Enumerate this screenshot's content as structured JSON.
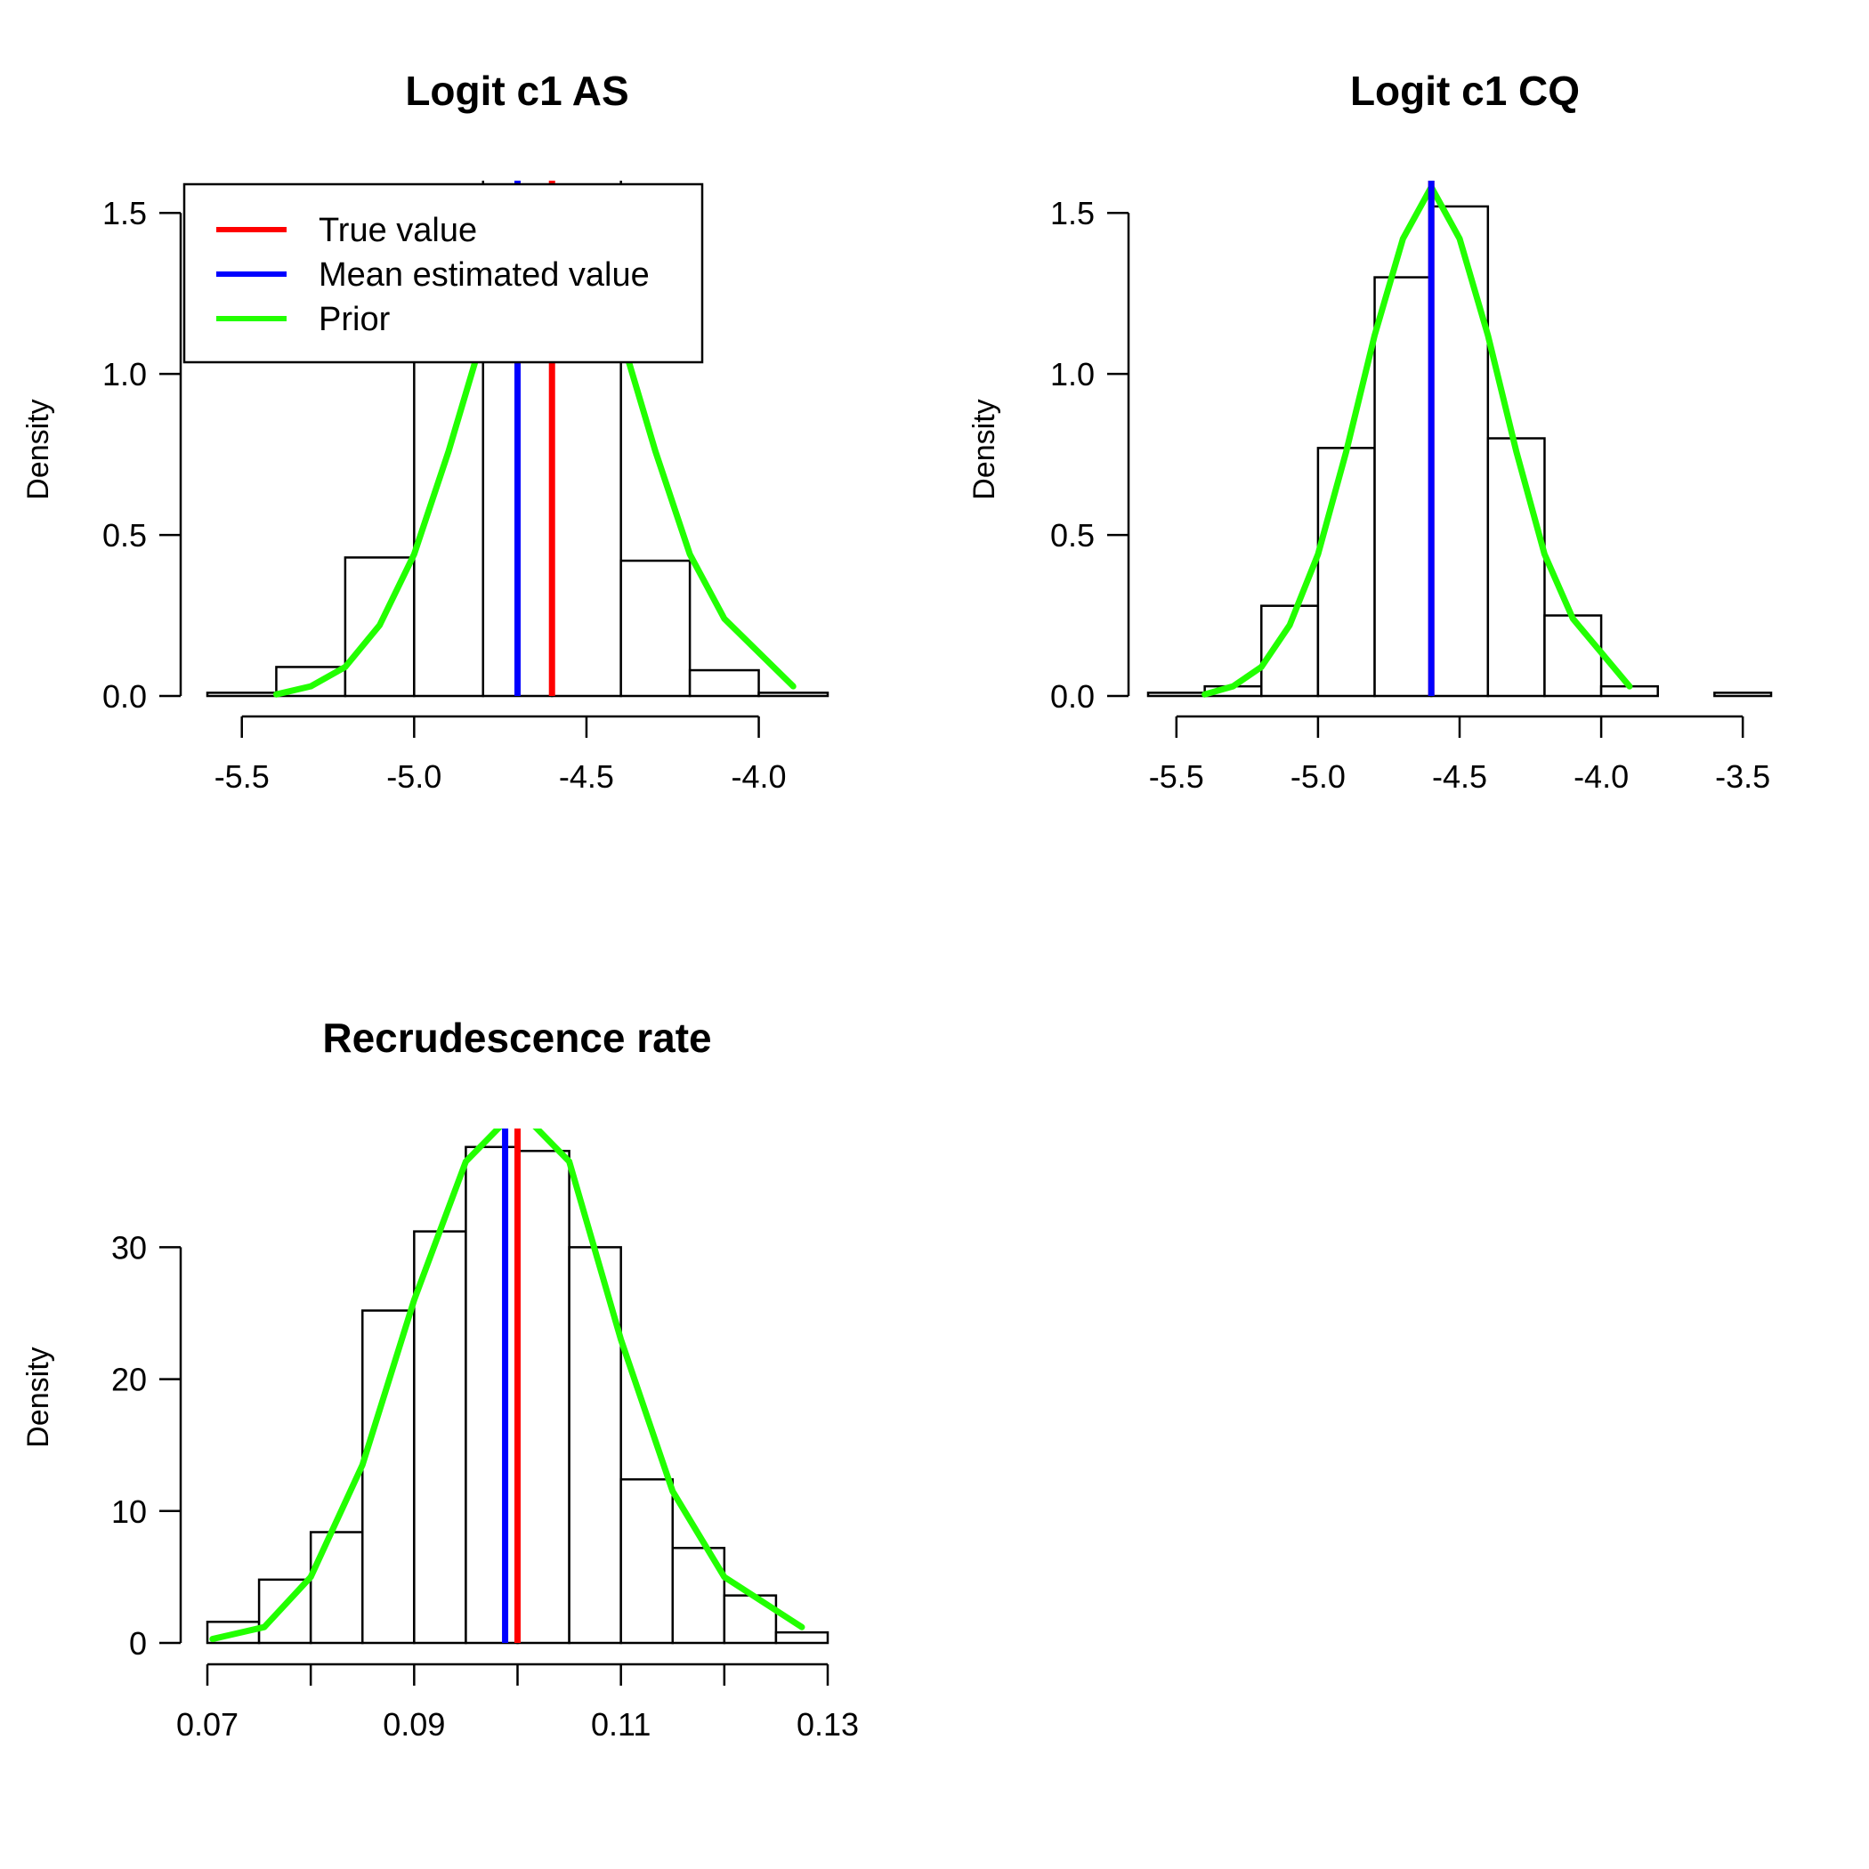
{
  "chart_data": [
    {
      "type": "histogram",
      "title": "Logit c1 AS",
      "xlabel": "",
      "ylabel": "Density",
      "xlim": [
        -5.6,
        -3.8
      ],
      "ylim": [
        0,
        1.6
      ],
      "x_ticks": [
        -5.5,
        -5.0,
        -4.5,
        -4.0
      ],
      "x_tick_labels": [
        "-5.5",
        "-5.0",
        "-4.5",
        "-4.0"
      ],
      "y_ticks": [
        0,
        0.5,
        1.0,
        1.5
      ],
      "y_tick_labels": [
        "0.0",
        "0.5",
        "1.0",
        "1.5"
      ],
      "bins": [
        {
          "x0": -5.6,
          "x1": -5.4,
          "density": 0.01
        },
        {
          "x0": -5.4,
          "x1": -5.2,
          "density": 0.09
        },
        {
          "x0": -5.2,
          "x1": -5.0,
          "density": 0.43
        },
        {
          "x0": -5.0,
          "x1": -4.8,
          "density": 1.05
        },
        {
          "x0": -4.8,
          "x1": -4.6,
          "density": 1.9
        },
        {
          "x0": -4.6,
          "x1": -4.4,
          "density": 1.7
        },
        {
          "x0": -4.4,
          "x1": -4.2,
          "density": 0.42
        },
        {
          "x0": -4.2,
          "x1": -4.0,
          "density": 0.08
        },
        {
          "x0": -4.0,
          "x1": -3.8,
          "density": 0.01
        }
      ],
      "true_value": -4.6,
      "mean_estimate": -4.7,
      "prior": {
        "x": [
          -5.4,
          -5.3,
          -5.2,
          -5.1,
          -5.0,
          -4.9,
          -4.8,
          -4.7,
          -4.6,
          -4.5,
          -4.4,
          -4.3,
          -4.2,
          -4.1,
          -3.9
        ],
        "y": [
          0.005,
          0.03,
          0.09,
          0.22,
          0.44,
          0.76,
          1.12,
          1.42,
          1.58,
          1.42,
          1.12,
          0.76,
          0.44,
          0.24,
          0.03
        ]
      },
      "legend": {
        "placement": "top-left",
        "entries": [
          {
            "label": "True value",
            "color": "#ff0000"
          },
          {
            "label": "Mean estimated value",
            "color": "#0000ff"
          },
          {
            "label": "Prior",
            "color": "#22ff00"
          }
        ]
      }
    },
    {
      "type": "histogram",
      "title": "Logit c1 CQ",
      "xlabel": "",
      "ylabel": "Density",
      "xlim": [
        -5.6,
        -3.4
      ],
      "ylim": [
        0,
        1.6
      ],
      "x_ticks": [
        -5.5,
        -5.0,
        -4.5,
        -4.0,
        -3.5
      ],
      "x_tick_labels": [
        "-5.5",
        "-5.0",
        "-4.5",
        "-4.0",
        "-3.5"
      ],
      "y_ticks": [
        0,
        0.5,
        1.0,
        1.5
      ],
      "y_tick_labels": [
        "0.0",
        "0.5",
        "1.0",
        "1.5"
      ],
      "bins": [
        {
          "x0": -5.6,
          "x1": -5.4,
          "density": 0.01
        },
        {
          "x0": -5.4,
          "x1": -5.2,
          "density": 0.03
        },
        {
          "x0": -5.2,
          "x1": -5.0,
          "density": 0.28
        },
        {
          "x0": -5.0,
          "x1": -4.8,
          "density": 0.77
        },
        {
          "x0": -4.8,
          "x1": -4.6,
          "density": 1.3
        },
        {
          "x0": -4.6,
          "x1": -4.4,
          "density": 1.52
        },
        {
          "x0": -4.4,
          "x1": -4.2,
          "density": 0.8
        },
        {
          "x0": -4.2,
          "x1": -4.0,
          "density": 0.25
        },
        {
          "x0": -4.0,
          "x1": -3.8,
          "density": 0.03
        },
        {
          "x0": -3.8,
          "x1": -3.6,
          "density": 0.0
        },
        {
          "x0": -3.6,
          "x1": -3.4,
          "density": 0.01
        }
      ],
      "true_value": -4.6,
      "mean_estimate": -4.6,
      "prior": {
        "x": [
          -5.4,
          -5.3,
          -5.2,
          -5.1,
          -5.0,
          -4.9,
          -4.8,
          -4.7,
          -4.6,
          -4.5,
          -4.4,
          -4.3,
          -4.2,
          -4.1,
          -3.9
        ],
        "y": [
          0.005,
          0.03,
          0.09,
          0.22,
          0.44,
          0.76,
          1.12,
          1.42,
          1.58,
          1.42,
          1.12,
          0.76,
          0.44,
          0.24,
          0.03
        ]
      }
    },
    {
      "type": "histogram",
      "title": "Recrudescence rate",
      "xlabel": "",
      "ylabel": "Density",
      "xlim": [
        0.07,
        0.13
      ],
      "ylim": [
        0,
        39
      ],
      "x_ticks": [
        0.07,
        0.08,
        0.09,
        0.1,
        0.11,
        0.12,
        0.13
      ],
      "x_tick_labels": [
        "0.07",
        "",
        "0.09",
        "",
        "0.11",
        "",
        "0.13"
      ],
      "y_ticks": [
        0,
        10,
        20,
        30
      ],
      "y_tick_labels": [
        "0",
        "10",
        "20",
        "30"
      ],
      "bins": [
        {
          "x0": 0.07,
          "x1": 0.075,
          "density": 1.6
        },
        {
          "x0": 0.075,
          "x1": 0.08,
          "density": 4.8
        },
        {
          "x0": 0.08,
          "x1": 0.085,
          "density": 8.4
        },
        {
          "x0": 0.085,
          "x1": 0.09,
          "density": 25.2
        },
        {
          "x0": 0.09,
          "x1": 0.095,
          "density": 31.2
        },
        {
          "x0": 0.095,
          "x1": 0.1,
          "density": 37.6
        },
        {
          "x0": 0.1,
          "x1": 0.105,
          "density": 37.3
        },
        {
          "x0": 0.105,
          "x1": 0.11,
          "density": 30.0
        },
        {
          "x0": 0.11,
          "x1": 0.115,
          "density": 12.4
        },
        {
          "x0": 0.115,
          "x1": 0.12,
          "density": 7.2
        },
        {
          "x0": 0.12,
          "x1": 0.125,
          "density": 3.6
        },
        {
          "x0": 0.125,
          "x1": 0.13,
          "density": 0.8
        }
      ],
      "true_value": 0.1,
      "mean_estimate": 0.0988,
      "prior": {
        "x": [
          0.0705,
          0.0755,
          0.08,
          0.085,
          0.09,
          0.095,
          0.1,
          0.105,
          0.11,
          0.115,
          0.12,
          0.1275
        ],
        "y": [
          0.3,
          1.2,
          5.0,
          13.5,
          26.0,
          36.5,
          40.5,
          36.5,
          23.0,
          11.5,
          5.0,
          1.2
        ]
      }
    }
  ]
}
